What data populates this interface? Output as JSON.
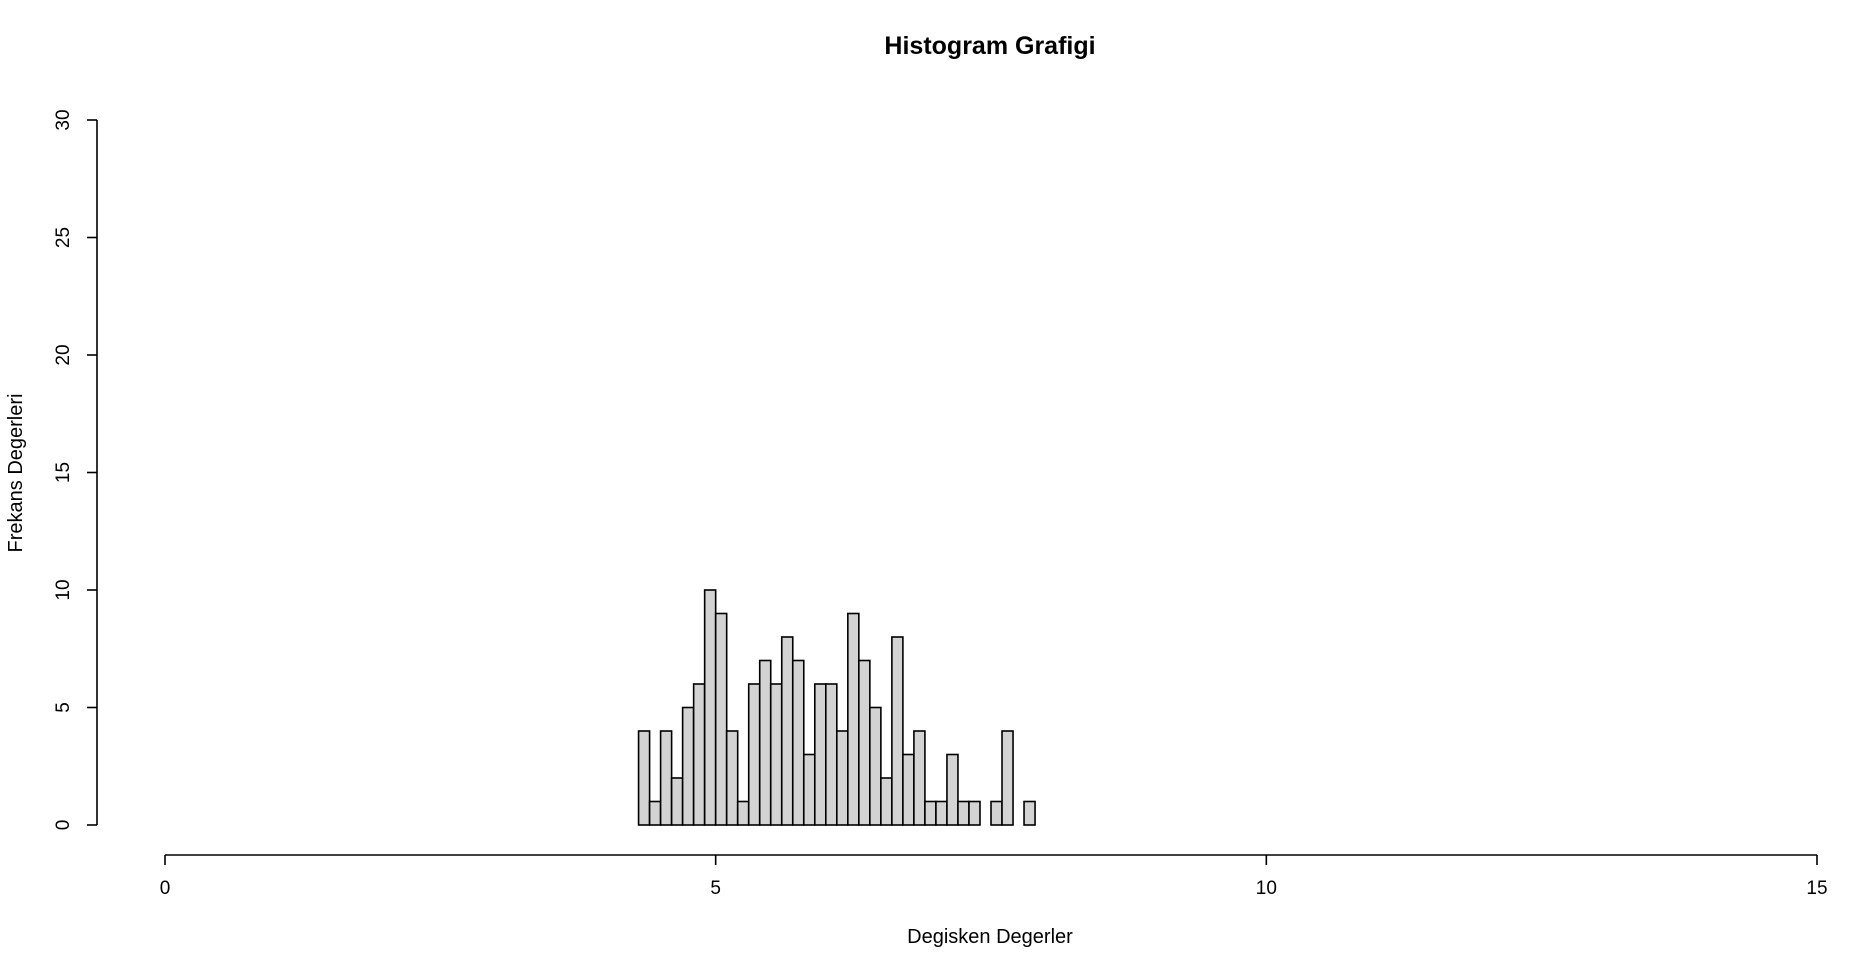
{
  "chart_data": {
    "type": "bar",
    "title": "Histogram Grafigi",
    "xlabel": "Degisken Degerler",
    "ylabel": "Frekans Degerleri",
    "xlim": [
      0,
      15
    ],
    "ylim": [
      0,
      30
    ],
    "x_ticks": [
      0,
      5,
      10,
      15
    ],
    "y_ticks": [
      0,
      5,
      10,
      15,
      20,
      25,
      30
    ],
    "bin_width": 0.1,
    "bin_starts": [
      4.3,
      4.4,
      4.5,
      4.6,
      4.7,
      4.8,
      4.9,
      5.0,
      5.1,
      5.2,
      5.3,
      5.4,
      5.5,
      5.6,
      5.7,
      5.8,
      5.9,
      6.0,
      6.1,
      6.2,
      6.3,
      6.4,
      6.5,
      6.6,
      6.7,
      6.8,
      6.9,
      7.0,
      7.1,
      7.2,
      7.3,
      7.4,
      7.5,
      7.6,
      7.7,
      7.8
    ],
    "values": [
      4,
      1,
      4,
      2,
      5,
      6,
      10,
      9,
      4,
      1,
      6,
      7,
      6,
      8,
      7,
      3,
      6,
      6,
      4,
      9,
      7,
      5,
      2,
      8,
      3,
      4,
      1,
      1,
      3,
      1,
      1,
      0,
      1,
      4,
      0,
      1
    ],
    "grid": false,
    "legend": "none",
    "bar_color": "#d3d3d3",
    "edge_color": "#000000"
  }
}
